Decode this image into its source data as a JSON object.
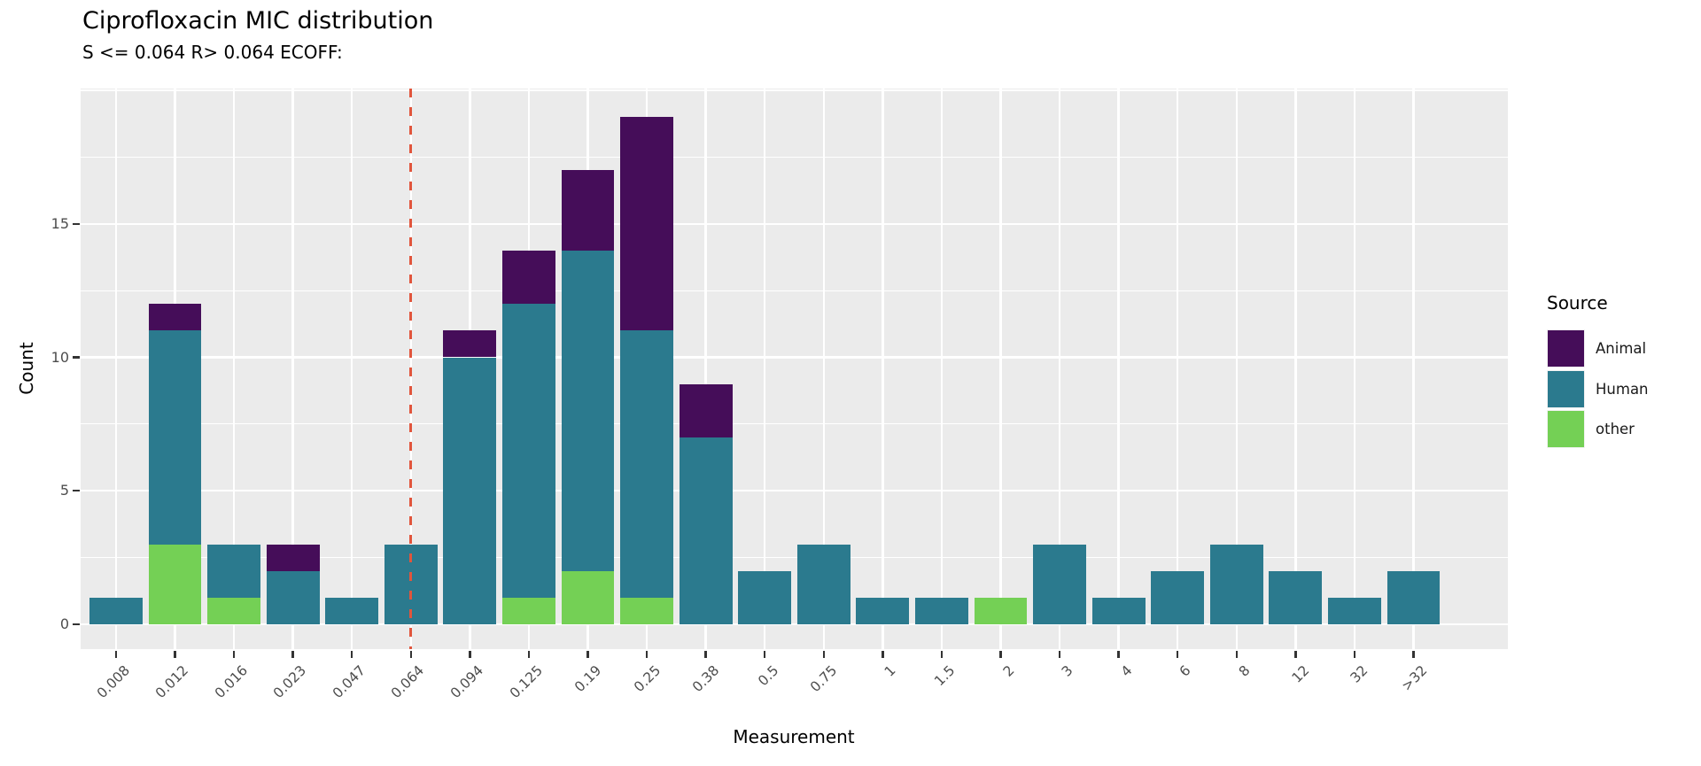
{
  "title": "Ciprofloxacin MIC distribution",
  "subtitle": "S <= 0.064 R> 0.064 ECOFF:",
  "x_axis_title": "Measurement",
  "y_axis_title": "Count",
  "legend": {
    "title": "Source",
    "entries": [
      {
        "label": "Animal",
        "color": "#450D59"
      },
      {
        "label": "Human",
        "color": "#2B7A8E"
      },
      {
        "label": "other",
        "color": "#74D055"
      }
    ]
  },
  "colors": {
    "panel_background": "#EBEBEB",
    "gridline": "#FFFFFF",
    "axis_text": "#4D4D4D",
    "tick_mark": "#333333",
    "ecoff_line": "#E1553C",
    "animal": "#450D59",
    "human": "#2B7A8E",
    "other": "#74D055"
  },
  "chart_data": {
    "type": "bar",
    "stacked": true,
    "title": "Ciprofloxacin MIC distribution",
    "subtitle": "S <= 0.064 R> 0.064 ECOFF:",
    "xlabel": "Measurement",
    "ylabel": "Count",
    "legend_title": "Source",
    "legend_position": "right",
    "grid": true,
    "categories": [
      "0.008",
      "0.012",
      "0.016",
      "0.023",
      "0.047",
      "0.064",
      "0.094",
      "0.125",
      "0.19",
      "0.25",
      "0.38",
      "0.5",
      "0.75",
      "1",
      "1.5",
      "2",
      "3",
      "4",
      "6",
      "8",
      "12",
      "32",
      ">32"
    ],
    "series": [
      {
        "name": "Animal",
        "color": "#450D59",
        "values": [
          0,
          1,
          0,
          1,
          0,
          0,
          1,
          2,
          3,
          8,
          2,
          0,
          0,
          0,
          0,
          0,
          0,
          0,
          0,
          0,
          0,
          0,
          0
        ]
      },
      {
        "name": "Human",
        "color": "#2B7A8E",
        "values": [
          1,
          8,
          2,
          2,
          1,
          3,
          10,
          11,
          12,
          10,
          7,
          2,
          3,
          1,
          1,
          0,
          3,
          1,
          2,
          3,
          2,
          1,
          2
        ]
      },
      {
        "name": "other",
        "color": "#74D055",
        "values": [
          0,
          3,
          1,
          0,
          0,
          0,
          0,
          1,
          2,
          1,
          0,
          0,
          0,
          0,
          0,
          1,
          0,
          0,
          0,
          0,
          0,
          0,
          0
        ]
      }
    ],
    "totals": [
      1,
      12,
      3,
      3,
      1,
      3,
      11,
      14,
      17,
      19,
      9,
      2,
      3,
      1,
      1,
      1,
      3,
      1,
      2,
      3,
      2,
      1,
      2
    ],
    "stack_order_bottom_to_top": [
      "other",
      "Human",
      "Animal"
    ],
    "y_ticks": [
      0,
      5,
      10,
      15
    ],
    "y_minor_gridlines": [
      2.5,
      7.5,
      12.5,
      17.5
    ],
    "y_major_gridlines": [
      0,
      5,
      10,
      15,
      20
    ],
    "ylim": [
      0,
      20
    ],
    "ecoff_line": {
      "x_category": "0.064",
      "style": "dashed",
      "color": "#E1553C"
    }
  }
}
